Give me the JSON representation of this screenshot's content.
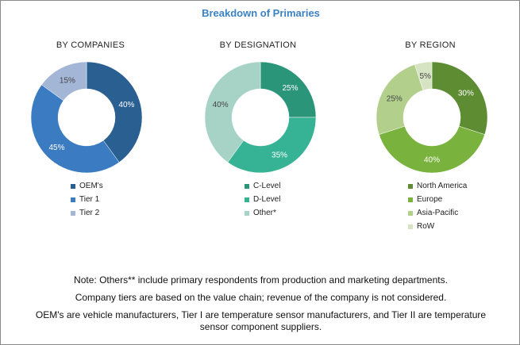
{
  "title": "Breakdown of Primaries",
  "chart_data": [
    {
      "type": "pie",
      "title": "BY COMPANIES",
      "categories": [
        "OEM's",
        "Tier 1",
        "Tier 2"
      ],
      "values": [
        40,
        45,
        15
      ],
      "labels": [
        "40%",
        "45%",
        "15%"
      ],
      "colors": [
        "#2a5f91",
        "#3a7bc1",
        "#a4b6d6"
      ]
    },
    {
      "type": "pie",
      "title": "BY DESIGNATION",
      "categories": [
        "C-Level",
        "D-Level",
        "Other*"
      ],
      "values": [
        25,
        35,
        40
      ],
      "labels": [
        "25%",
        "35%",
        "40%"
      ],
      "colors": [
        "#2b9579",
        "#36b394",
        "#a6d3c6"
      ]
    },
    {
      "type": "pie",
      "title": "BY REGION",
      "categories": [
        "North America",
        "Europe",
        "Asia-Pacific",
        "RoW"
      ],
      "values": [
        30,
        40,
        25,
        5
      ],
      "labels": [
        "30%",
        "40%",
        "25%",
        "5%"
      ],
      "colors": [
        "#5e8c32",
        "#79b33d",
        "#b2cf8c",
        "#d7e4c4"
      ]
    }
  ],
  "notes": [
    "Note: Others** include primary respondents from production and marketing departments.",
    "Company tiers are based on the value chain; revenue of the company is not considered.",
    "OEM's are vehicle manufacturers, Tier I are temperature sensor manufacturers, and Tier II are temperature sensor component suppliers."
  ]
}
